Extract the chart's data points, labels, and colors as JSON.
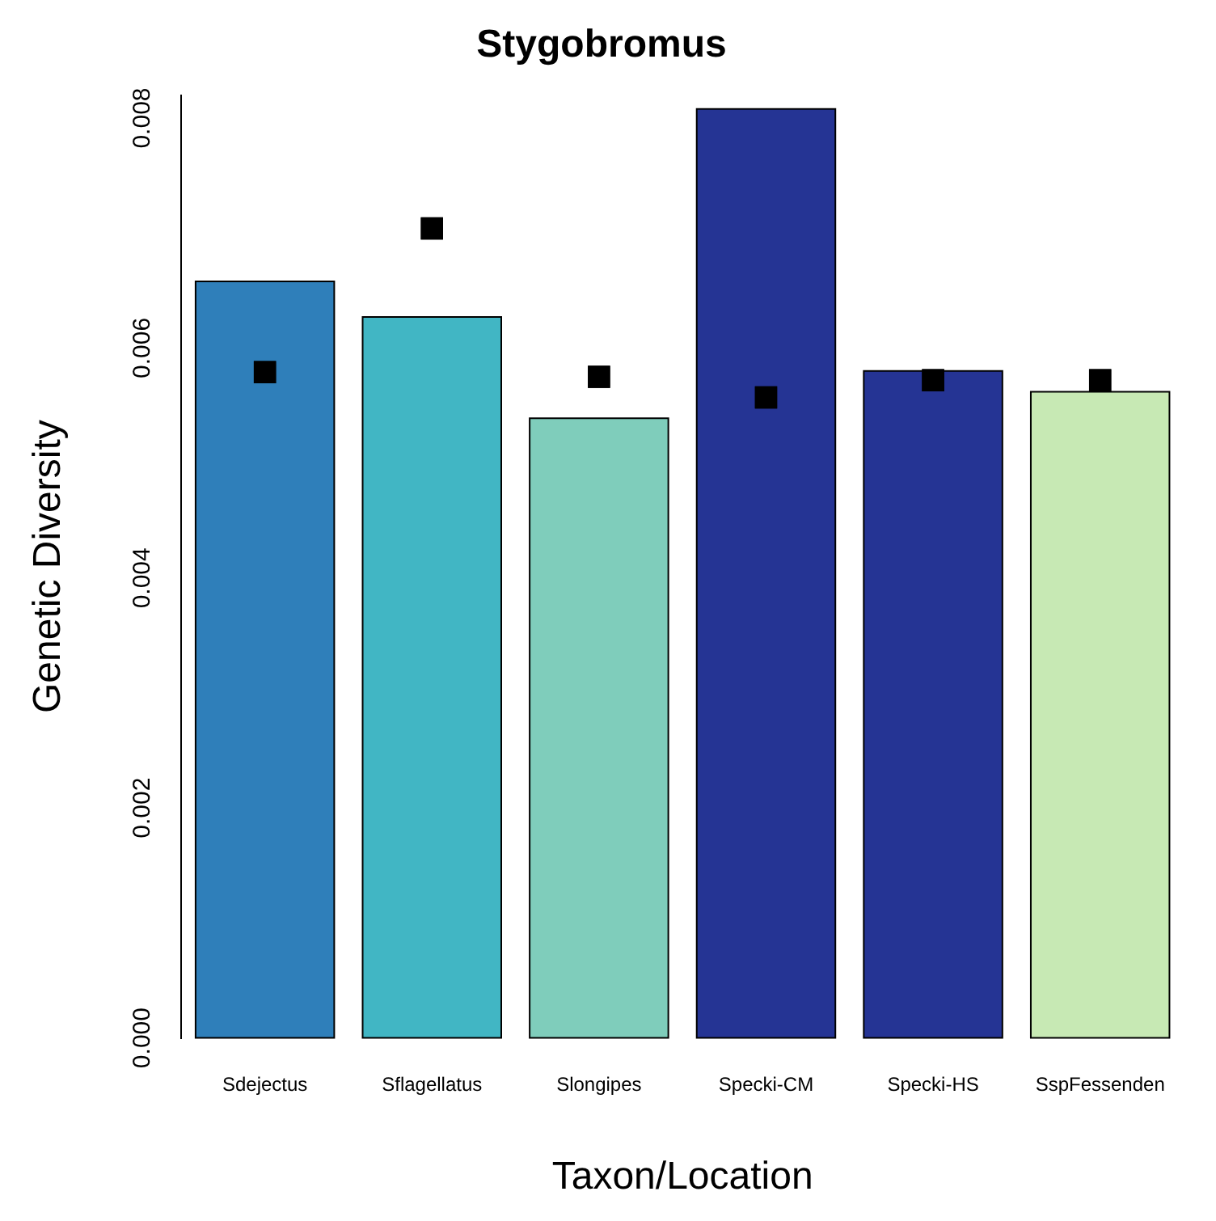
{
  "chart_data": {
    "type": "bar",
    "title": "Stygobromus",
    "xlabel": "Taxon/Location",
    "ylabel": "Genetic Diversity",
    "categories": [
      "Sdejectus",
      "Sflagellatus",
      "Slongipes",
      "Specki-CM",
      "Specki-HS",
      "SspFessenden"
    ],
    "series": [
      {
        "type": "bar",
        "colors": [
          "#2f7fba",
          "#41b6c4",
          "#7fcdbb",
          "#253494",
          "#253494",
          "#c7e9b4"
        ],
        "values": [
          0.00658,
          0.00627,
          0.00539,
          0.00808,
          0.0058,
          0.00562
        ]
      },
      {
        "type": "scatter",
        "color": "#000000",
        "x": [
          "Sdejectus",
          "Sflagellatus",
          "Slongipes",
          "Specki-CM",
          "Specki-HS",
          "SspFessenden"
        ],
        "values": [
          0.00579,
          0.00704,
          0.00575,
          0.00557,
          0.00572,
          0.00572
        ]
      }
    ],
    "marker": "square",
    "ylim": [
      0,
      0.0082
    ],
    "yticks": [
      {
        "value": 0,
        "label": "0.000"
      },
      {
        "value": 0.002,
        "label": "0.002"
      },
      {
        "value": 0.004,
        "label": "0.004"
      },
      {
        "value": 0.006,
        "label": "0.006"
      },
      {
        "value": 0.008,
        "label": "0.008"
      }
    ],
    "grid": false,
    "legend": false
  }
}
